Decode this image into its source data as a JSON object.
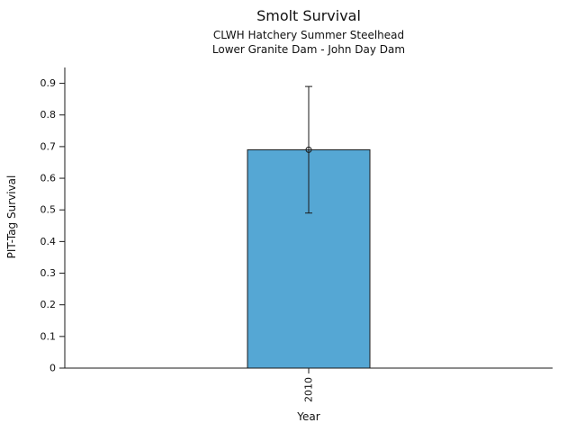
{
  "chart_data": {
    "type": "bar",
    "title": "Smolt Survival",
    "subtitle": [
      "CLWH Hatchery Summer Steelhead",
      "Lower Granite Dam - John Day Dam"
    ],
    "xlabel": "Year",
    "ylabel": "PIT-Tag Survival",
    "categories": [
      "2010"
    ],
    "values": [
      0.69
    ],
    "error_low": [
      0.49
    ],
    "error_high": [
      0.89
    ],
    "ylim": [
      0,
      0.95
    ],
    "yticks": [
      0,
      0.1,
      0.2,
      0.3,
      0.4,
      0.5,
      0.6,
      0.7,
      0.8,
      0.9
    ],
    "ytick_labels": [
      "0",
      "0.1",
      "0.2",
      "0.3",
      "0.4",
      "0.5",
      "0.6",
      "0.7",
      "0.8",
      "0.9"
    ],
    "grid": false,
    "legend_position": "none",
    "bar_color": "#55a7d4",
    "bar_edge_color": "#1a1a1a",
    "error_bar_color": "#1a1a1a",
    "marker": "open-circle",
    "axis_color": "#1a1a1a",
    "text_color": "#111111"
  }
}
